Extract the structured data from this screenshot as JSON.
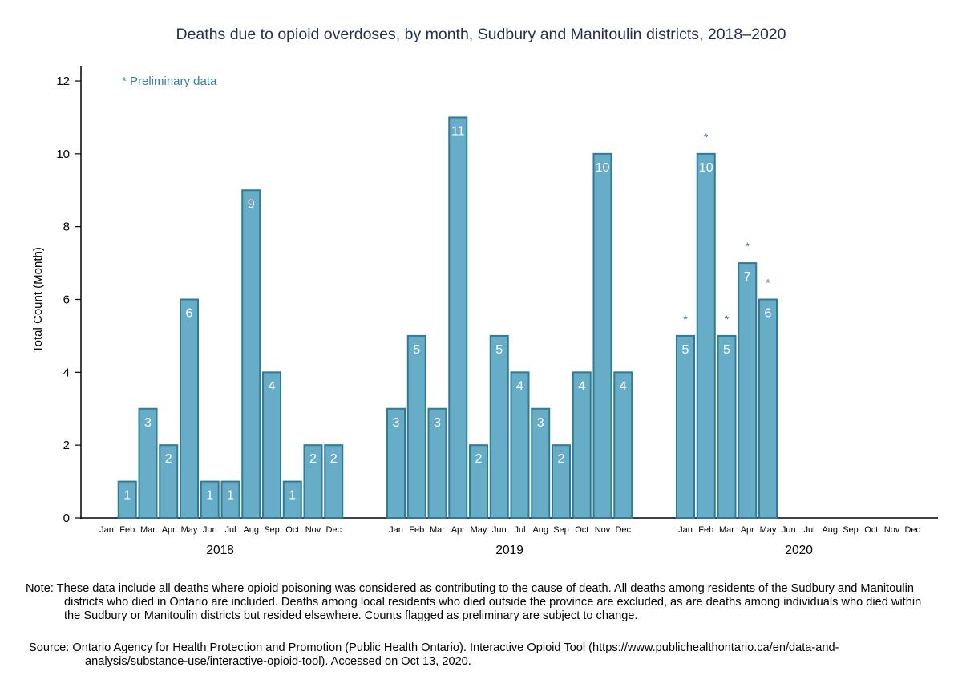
{
  "chart_data": {
    "type": "bar",
    "title": "Deaths due to opioid overdoses, by month, Sudbury and Manitoulin districts, 2018–2020",
    "xlabel": "",
    "ylabel": "Total Count (Month)",
    "ylim": [
      0,
      12
    ],
    "yticks": [
      0,
      2,
      4,
      6,
      8,
      10,
      12
    ],
    "grid": false,
    "annotation": "* Preliminary data",
    "months": [
      "Jan",
      "Feb",
      "Mar",
      "Apr",
      "May",
      "Jun",
      "Jul",
      "Aug",
      "Sep",
      "Oct",
      "Nov",
      "Dec"
    ],
    "groups": [
      {
        "year": "2018",
        "values": [
          0,
          1,
          3,
          2,
          6,
          1,
          1,
          9,
          4,
          1,
          2,
          2
        ],
        "preliminary": [
          false,
          false,
          false,
          false,
          false,
          false,
          false,
          false,
          false,
          false,
          false,
          false
        ]
      },
      {
        "year": "2019",
        "values": [
          3,
          5,
          3,
          11,
          2,
          5,
          4,
          3,
          2,
          4,
          10,
          4
        ],
        "preliminary": [
          false,
          false,
          false,
          false,
          false,
          false,
          false,
          false,
          false,
          false,
          false,
          false
        ]
      },
      {
        "year": "2020",
        "values": [
          5,
          10,
          5,
          7,
          6,
          null,
          null,
          null,
          null,
          null,
          null,
          null
        ],
        "preliminary": [
          true,
          true,
          true,
          true,
          true,
          false,
          false,
          false,
          false,
          false,
          false,
          false
        ]
      }
    ],
    "colors": {
      "bar_fill": "#67adc8",
      "bar_stroke": "#2f7b95",
      "label": "#ffffff",
      "annotation": "#3a7f99",
      "title": "#1f2f4d"
    }
  },
  "footer": {
    "note": "Note: These data include all deaths where opioid poisoning was considered as contributing to the cause of death. All deaths among residents of the Sudbury and Manitoulin districts who died in Ontario are included. Deaths among local residents who died outside the province are excluded, as are deaths among individuals who died within the Sudbury or Manitoulin districts but resided elsewhere. Counts flagged as preliminary are subject to change.",
    "source": "Source: Ontario Agency for Health Protection and Promotion (Public Health Ontario). Interactive Opioid Tool (https://www.publichealthontario.ca/en/data-and-analysis/substance-use/interactive-opioid-tool). Accessed on Oct 13, 2020."
  }
}
